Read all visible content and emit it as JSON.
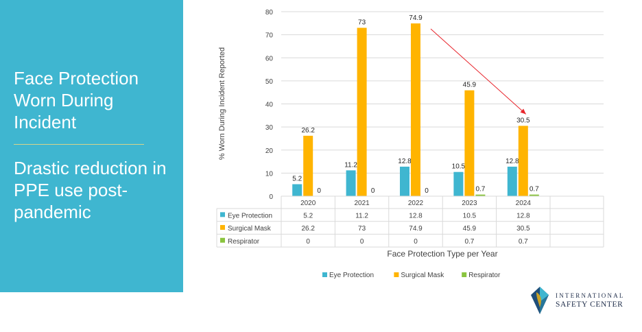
{
  "slide": {
    "title": "Face Protection Worn During Incident",
    "subtitle": "Drastic reduction in PPE use post-pandemic"
  },
  "logo": {
    "line1": "INTERNATIONAL",
    "line2": "SAFETY CENTER"
  },
  "colors": {
    "panel": "#3fb6d0",
    "eye_protection": "#3fb6d0",
    "surgical_mask": "#ffb400",
    "respirator": "#8ac43f",
    "trend_arrow": "#e8262d"
  },
  "chart_data": {
    "type": "bar",
    "xlabel": "Face Protection Type per Year",
    "ylabel": "% Worn During Incident Reported",
    "categories": [
      "2020",
      "2021",
      "2022",
      "2023",
      "2024"
    ],
    "ylim": [
      0,
      80
    ],
    "yticks": [
      "0",
      "10",
      "20",
      "30",
      "40",
      "50",
      "60",
      "70",
      "80"
    ],
    "grid": true,
    "legend": "bottom",
    "data_table": true,
    "series": [
      {
        "name": "Eye Protection",
        "values": [
          5.2,
          11.2,
          12.8,
          10.5,
          12.8
        ],
        "labels": [
          "5.2",
          "11.2",
          "12.8",
          "10.5",
          "12.8"
        ]
      },
      {
        "name": "Surgical Mask",
        "values": [
          26.2,
          73,
          74.9,
          45.9,
          30.5
        ],
        "labels": [
          "26.2",
          "73",
          "74.9",
          "45.9",
          "30.5"
        ]
      },
      {
        "name": "Respirator",
        "values": [
          0,
          0,
          0,
          0.7,
          0.7
        ],
        "labels": [
          "0",
          "0",
          "0",
          "0.7",
          "0.7"
        ]
      }
    ],
    "annotations": [
      {
        "type": "arrow",
        "from": {
          "x": "2022",
          "y": 74.9
        },
        "to": {
          "x": "2024",
          "y": 30.5
        }
      }
    ]
  }
}
